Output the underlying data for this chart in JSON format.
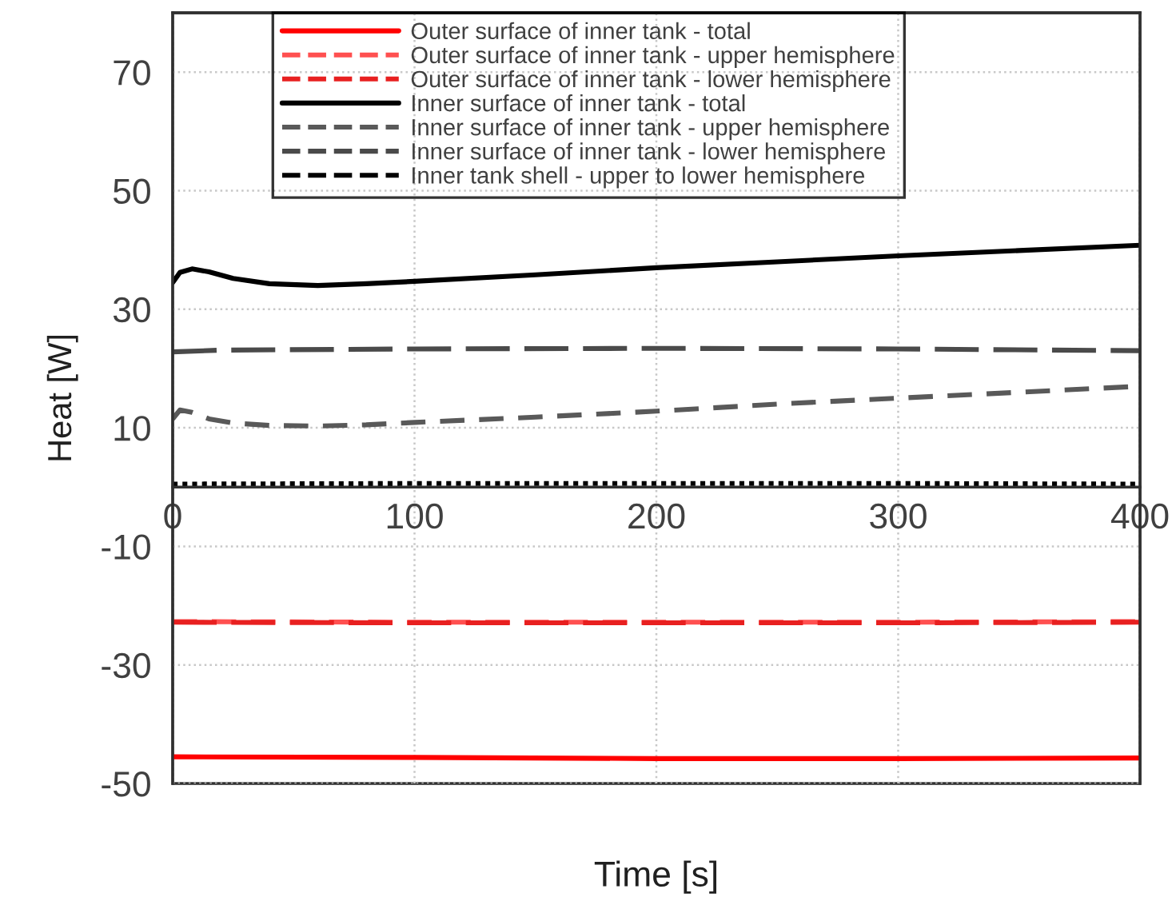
{
  "chart_data": {
    "type": "line",
    "xlabel": "Time [s]",
    "ylabel": "Heat [W]",
    "xlim": [
      0,
      400
    ],
    "xticks": [
      0,
      100,
      200,
      300,
      400
    ],
    "ylim": [
      -50,
      80
    ],
    "yticks": [
      -50,
      -30,
      -10,
      10,
      30,
      50,
      70
    ],
    "grid": true,
    "legend": "top",
    "series": [
      {
        "name": "Outer surface of inner tank - total",
        "color": "#ff0000",
        "line_style": "solid",
        "x": [
          0,
          100,
          200,
          300,
          400
        ],
        "values": [
          -45.5,
          -45.6,
          -45.8,
          -45.8,
          -45.7
        ]
      },
      {
        "name": "Outer surface of inner tank - upper hemisphere",
        "color": "#ff5050",
        "line_style": "dashed",
        "x": [
          0,
          100,
          200,
          300,
          400
        ],
        "values": [
          -22.7,
          -22.8,
          -22.8,
          -22.8,
          -22.7
        ]
      },
      {
        "name": "Outer surface of inner tank - lower hemisphere",
        "color": "#e82020",
        "line_style": "long dashed",
        "x": [
          0,
          100,
          200,
          300,
          400
        ],
        "values": [
          -22.8,
          -22.9,
          -22.9,
          -22.9,
          -22.8
        ]
      },
      {
        "name": "Inner surface of inner tank - total",
        "color": "#000000",
        "line_style": "solid",
        "x": [
          0,
          3,
          8,
          15,
          25,
          40,
          60,
          80,
          100,
          150,
          200,
          250,
          300,
          350,
          400
        ],
        "values": [
          34.5,
          36.2,
          36.8,
          36.3,
          35.2,
          34.3,
          34.0,
          34.3,
          34.7,
          35.8,
          37.0,
          38.0,
          39.0,
          39.9,
          40.8
        ]
      },
      {
        "name": "Inner surface of inner tank - upper hemisphere",
        "color": "#595959",
        "line_style": "dashed",
        "x": [
          0,
          3,
          8,
          15,
          25,
          40,
          60,
          80,
          100,
          150,
          200,
          250,
          300,
          350,
          400
        ],
        "values": [
          11.5,
          13.0,
          12.6,
          11.5,
          10.8,
          10.4,
          10.3,
          10.5,
          10.9,
          11.8,
          12.8,
          14.0,
          15.0,
          16.0,
          17.0
        ]
      },
      {
        "name": "Inner surface of inner tank - lower hemisphere",
        "color": "#4a4a4a",
        "line_style": "long dashed",
        "x": [
          0,
          20,
          100,
          200,
          300,
          400
        ],
        "values": [
          22.8,
          23.1,
          23.3,
          23.4,
          23.3,
          23.0
        ]
      },
      {
        "name": "Inner tank shell - upper to lower hemisphere",
        "color": "#000000",
        "line_style": "dotted",
        "x": [
          0,
          100,
          200,
          300,
          400
        ],
        "values": [
          0.5,
          0.6,
          0.6,
          0.6,
          0.5
        ]
      }
    ]
  }
}
